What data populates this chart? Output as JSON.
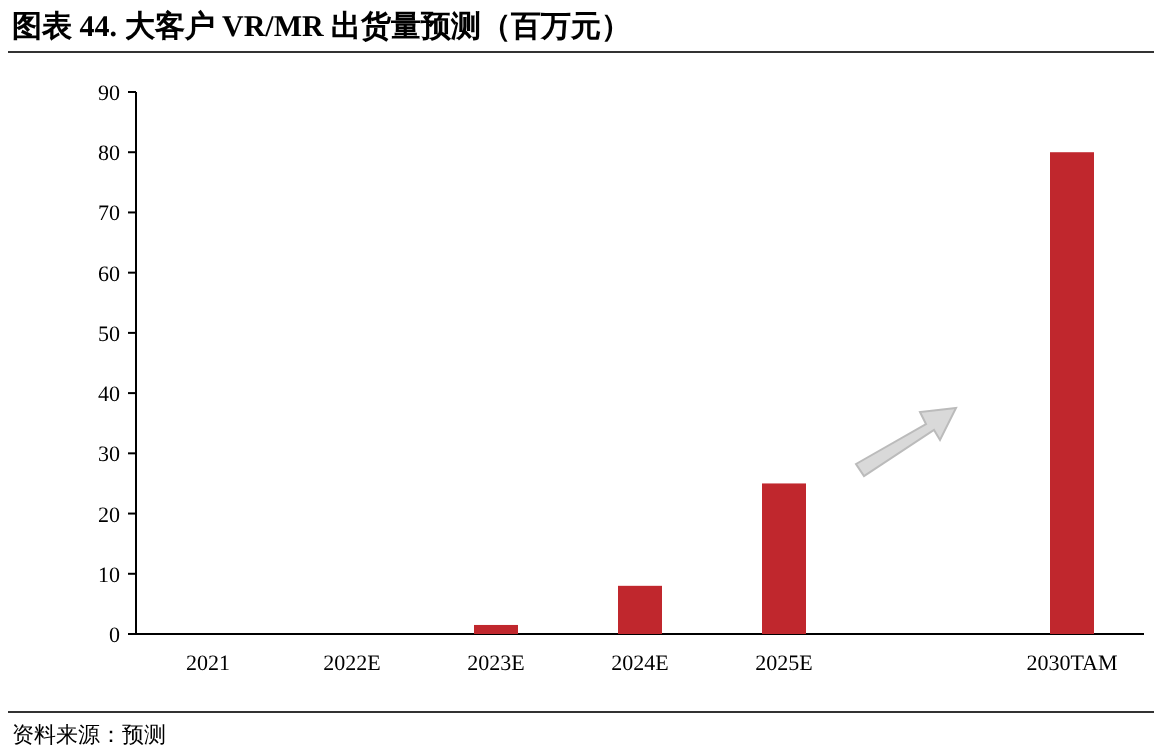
{
  "chart_data": {
    "type": "bar",
    "title": "图表 44. 大客户 VR/MR 出货量预测（百万元）",
    "categories": [
      "2021",
      "2022E",
      "2023E",
      "2024E",
      "2025E",
      null,
      "2030TAM"
    ],
    "values": [
      0,
      0,
      1.5,
      8,
      25,
      null,
      80
    ],
    "color": "#c0272d",
    "ylim": [
      0,
      90
    ],
    "yticks": [
      0,
      10,
      20,
      30,
      40,
      50,
      60,
      70,
      80,
      90
    ],
    "annotations": [
      "资料来源：预测"
    ]
  }
}
